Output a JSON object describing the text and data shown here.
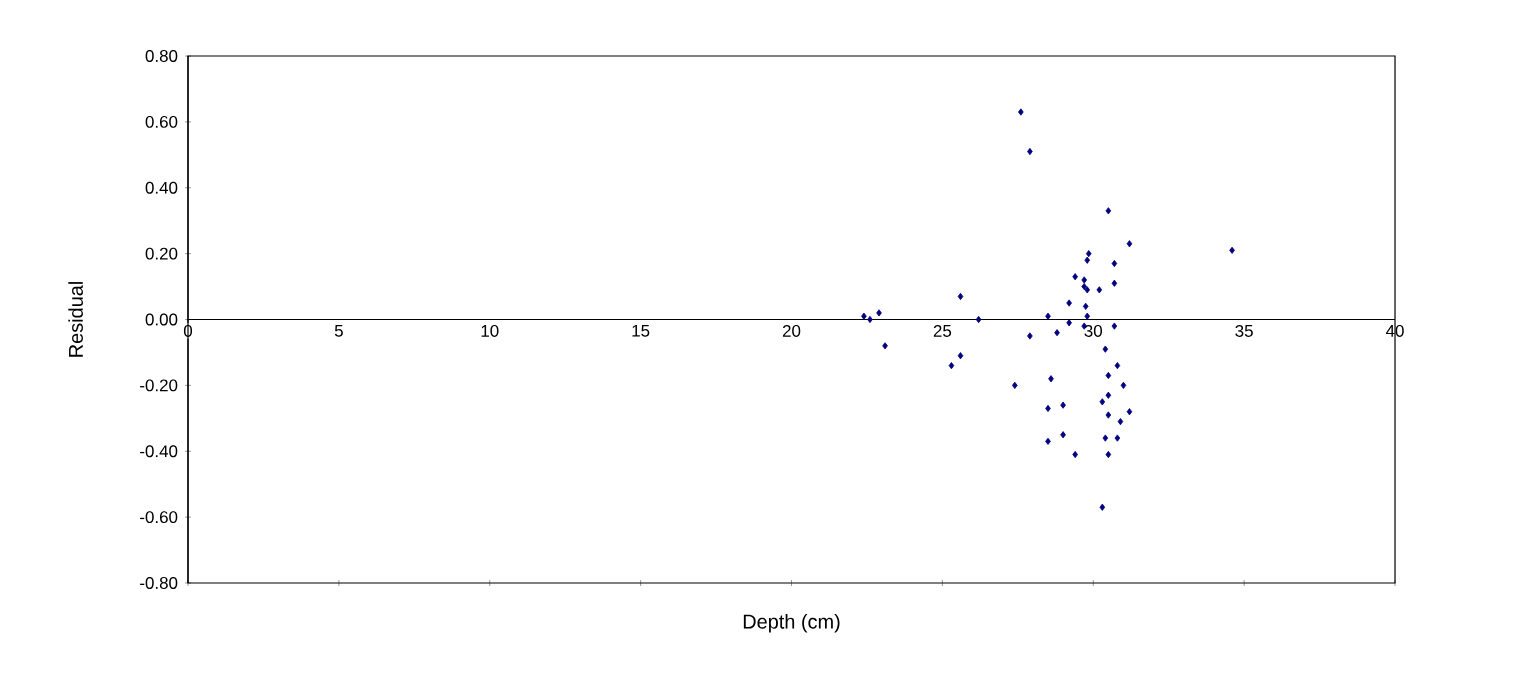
{
  "chart_data": {
    "type": "scatter",
    "xlabel": "Depth (cm)",
    "ylabel": "Residual",
    "xlim": [
      0,
      40
    ],
    "xticks": [
      0,
      5,
      10,
      15,
      20,
      25,
      30,
      35,
      40
    ],
    "ylim": [
      -0.8,
      0.8
    ],
    "yticks": [
      {
        "value": -0.8,
        "label": "-0.80"
      },
      {
        "value": -0.6,
        "label": "-0.60"
      },
      {
        "value": -0.4,
        "label": "-0.40"
      },
      {
        "value": -0.2,
        "label": "-0.20"
      },
      {
        "value": 0,
        "label": "0.00"
      },
      {
        "value": 0.2,
        "label": "0.20"
      },
      {
        "value": 0.4,
        "label": "0.40"
      },
      {
        "value": 0.6,
        "label": "0.60"
      },
      {
        "value": 0.8,
        "label": "0.80"
      }
    ],
    "marker": "diamond",
    "series": [
      {
        "color": "#000080",
        "x": [
          22.4,
          22.6,
          22.9,
          23.1,
          25.3,
          25.6,
          25.6,
          26.2,
          27.4,
          27.6,
          27.9,
          27.9,
          28.5,
          28.5,
          28.5,
          28.6,
          28.8,
          29.0,
          29.0,
          29.2,
          29.2,
          29.4,
          29.4,
          29.7,
          29.7,
          29.7,
          29.75,
          29.8,
          29.8,
          29.85,
          29.8,
          30.2,
          30.3,
          30.3,
          30.4,
          30.4,
          30.5,
          30.5,
          30.5,
          30.5,
          30.5,
          30.7,
          30.7,
          30.7,
          30.8,
          30.8,
          30.9,
          31.0,
          31.2,
          31.2,
          34.6
        ],
        "values": [
          0.01,
          0.0,
          0.02,
          -0.08,
          -0.14,
          -0.11,
          0.07,
          0.0,
          -0.2,
          0.63,
          0.51,
          -0.05,
          -0.37,
          0.01,
          -0.27,
          -0.18,
          -0.04,
          -0.26,
          -0.35,
          0.05,
          -0.01,
          0.13,
          -0.41,
          0.12,
          0.1,
          -0.02,
          0.04,
          0.01,
          0.18,
          0.2,
          0.09,
          0.09,
          -0.25,
          -0.57,
          -0.09,
          -0.36,
          0.33,
          -0.17,
          -0.23,
          -0.29,
          -0.41,
          0.17,
          0.11,
          -0.02,
          -0.14,
          -0.36,
          -0.31,
          -0.2,
          0.23,
          -0.28,
          0.21
        ]
      }
    ]
  }
}
